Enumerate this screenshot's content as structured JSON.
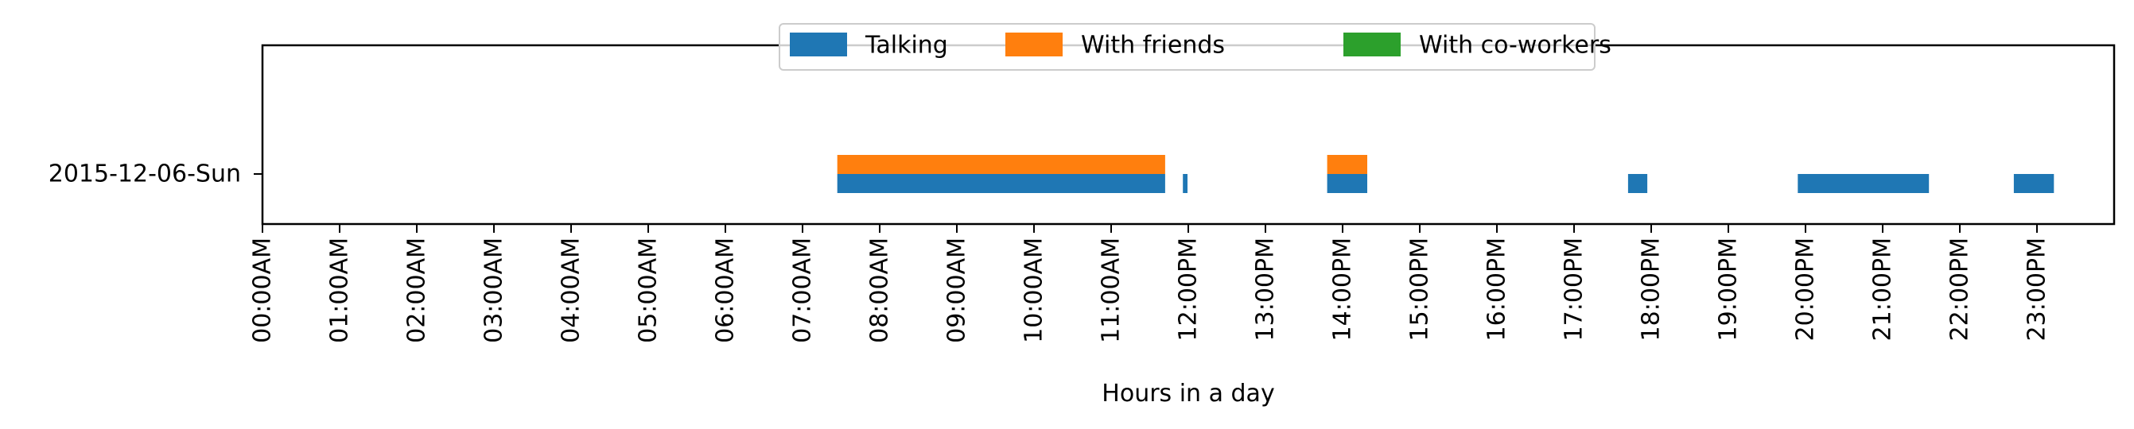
{
  "chart_data": {
    "type": "bar",
    "orientation": "horizontal-timeline",
    "title": "",
    "xlabel": "Hours in a day",
    "ylabel": "",
    "xlim": [
      0,
      24
    ],
    "x_ticks": [
      "00:00AM",
      "01:00AM",
      "02:00AM",
      "03:00AM",
      "04:00AM",
      "05:00AM",
      "06:00AM",
      "07:00AM",
      "08:00AM",
      "09:00AM",
      "10:00AM",
      "11:00AM",
      "12:00PM",
      "13:00PM",
      "14:00PM",
      "15:00PM",
      "16:00PM",
      "17:00PM",
      "18:00PM",
      "19:00PM",
      "20:00PM",
      "21:00PM",
      "22:00PM",
      "23:00PM"
    ],
    "categories": [
      "2015-12-06-Sun"
    ],
    "grid": false,
    "legend_position": "top-center",
    "series": [
      {
        "name": "Talking",
        "color": "#1f77b4",
        "intervals": [
          [
            7.45,
            11.7
          ],
          [
            11.93,
            11.99
          ],
          [
            13.8,
            14.32
          ],
          [
            17.7,
            17.95
          ],
          [
            19.9,
            21.6
          ],
          [
            22.7,
            23.22
          ]
        ]
      },
      {
        "name": "With friends",
        "color": "#ff7f0e",
        "intervals": [
          [
            7.45,
            11.7
          ],
          [
            13.8,
            14.32
          ]
        ]
      },
      {
        "name": "With co-workers",
        "color": "#2ca02c",
        "intervals": []
      }
    ]
  }
}
